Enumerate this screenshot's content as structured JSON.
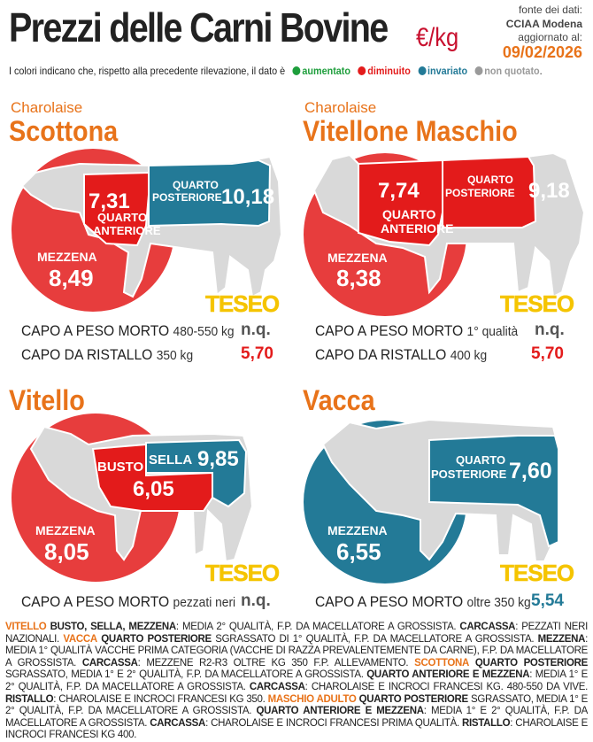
{
  "header": {
    "title": "Prezzi delle Carni Bovine",
    "unit": "€/kg",
    "source_label": "fonte dei dati:",
    "source": "CCIAA Modena",
    "updated_label": "aggiornato al:",
    "updated_date": "09/02/2026"
  },
  "legend": {
    "intro": "I colori indicano che, rispetto alla precedente rilevazione, il dato è",
    "items": [
      {
        "label": "aumentato",
        "color": "#1e9e3c"
      },
      {
        "label": "diminuito",
        "color": "#e31b1b"
      },
      {
        "label": "invariato",
        "color": "#237a97"
      },
      {
        "label": "non quotato",
        "color": "#9a9a9a"
      }
    ],
    "end": "."
  },
  "colors": {
    "increased": "#1e9e3c",
    "decreased": "#e31b1b",
    "unchanged": "#237a97",
    "not_quoted": "#9a9a9a",
    "accent": "#e8731a",
    "logo": "#f5c400"
  },
  "logo_text": "TESEO",
  "chart_data": [
    {
      "type": "table",
      "breed": "Charolaise",
      "category": "Scottona",
      "cuts": [
        {
          "name": "QUARTO ANTERIORE",
          "value": "7,31",
          "status": "decreased"
        },
        {
          "name": "QUARTO POSTERIORE",
          "value": "10,18",
          "status": "unchanged"
        },
        {
          "name": "MEZZENA",
          "value": "8,49",
          "status": "decreased"
        }
      ],
      "rows": [
        {
          "label": "CAPO A PESO MORTO",
          "qualifier": "480-550 kg",
          "value": "n.q.",
          "status": "not_quoted"
        },
        {
          "label": "CAPO DA RISTALLO",
          "qualifier": "350 kg",
          "value": "5,70",
          "status": "decreased"
        }
      ]
    },
    {
      "type": "table",
      "breed": "Charolaise",
      "category": "Vitellone Maschio",
      "cuts": [
        {
          "name": "QUARTO ANTERIORE",
          "value": "7,74",
          "status": "decreased"
        },
        {
          "name": "QUARTO POSTERIORE",
          "value": "9,18",
          "status": "decreased"
        },
        {
          "name": "MEZZENA",
          "value": "8,38",
          "status": "decreased"
        }
      ],
      "rows": [
        {
          "label": "CAPO A PESO MORTO",
          "qualifier": "1° qualità",
          "value": "n.q.",
          "status": "not_quoted"
        },
        {
          "label": "CAPO DA RISTALLO",
          "qualifier": "400 kg",
          "value": "5,70",
          "status": "decreased"
        }
      ]
    },
    {
      "type": "table",
      "breed": "",
      "category": "Vitello",
      "cuts": [
        {
          "name": "BUSTO",
          "value": "6,05",
          "status": "decreased"
        },
        {
          "name": "SELLA",
          "value": "9,85",
          "status": "unchanged"
        },
        {
          "name": "MEZZENA",
          "value": "8,05",
          "status": "decreased"
        }
      ],
      "rows": [
        {
          "label": "CAPO A PESO MORTO",
          "qualifier": "pezzati neri",
          "value": "n.q.",
          "status": "not_quoted"
        }
      ]
    },
    {
      "type": "table",
      "breed": "",
      "category": "Vacca",
      "cuts": [
        {
          "name": "QUARTO POSTERIORE",
          "value": "7,60",
          "status": "unchanged"
        },
        {
          "name": "MEZZENA",
          "value": "6,55",
          "status": "unchanged"
        }
      ],
      "rows": [
        {
          "label": "CAPO A PESO MORTO",
          "qualifier": "oltre 350 kg",
          "value": "5,54",
          "status": "unchanged"
        }
      ]
    }
  ],
  "footnote": {
    "vitello_title": "VITELLO",
    "vitello_cuts": "BUSTO, SELLA, MEZZENA",
    "vitello_text": ": MEDIA 2° QUALITÀ, F.P. DA MACELLATORE A GROSSISTA.",
    "vitello_carcassa": "CARCASSA",
    "vitello_carcassa_text": ": PEZZATI NERI NAZIONALI.",
    "vacca_title": "VACCA",
    "vacca_qp": "QUARTO POSTERIORE",
    "vacca_qp_text": "SGRASSATO DI 1° QUALITÀ, F.P. DA MACELLATORE A GROSSISTA.",
    "vacca_mezzena": "MEZZENA",
    "vacca_mezzena_text": ": MEDIA 1° QUALITÀ VACCHE PRIMA CATEGORIA (VACCHE DI RAZZA PREVALENTEMENTE DA CARNE), F.P. DA MACELLATORE A GROSSISTA.",
    "vacca_carcassa": "CARCASSA",
    "vacca_carcassa_text": ": MEZZENE R2-R3 OLTRE KG 350 F.P. ALLEVAMENTO.",
    "scottona_title": "SCOTTONA",
    "scottona_qp": "QUARTO POSTERIORE",
    "scottona_qp_text": "SGRASSATO, MEDIA 1° E 2° QUALITÀ, F.P. DA MACELLATORE A GROSSISTA.",
    "scottona_qa": "QUARTO ANTERIORE E MEZZENA",
    "scottona_qa_text": ": MEDIA 1° E 2° QUALITÀ, F.P. DA MACELLATORE A GROSSISTA.",
    "scottona_carcassa": "CARCASSA",
    "scottona_carcassa_text": ": CHAROLAISE E INCROCI FRANCESI KG. 480-550 DA VIVE.",
    "scottona_ristallo": "RISTALLO",
    "scottona_ristallo_text": ": CHAROLAISE E INCROCI FRANCESI KG 350.",
    "maschio_title": "MASCHIO ADULTO",
    "maschio_qp": "QUARTO POSTERIORE",
    "maschio_qp_text": "SGRASSATO, MEDIA 1° E 2° QUALITÀ, F.P. DA MACELLATORE A GROSSISTA.",
    "maschio_qa": "QUARTO ANTERIORE E MEZZENA",
    "maschio_qa_text": ": MEDIA 1° E 2° QUALITÀ, F.P. DA MACELLATORE A GROSSISTA.",
    "maschio_carcassa": "CARCASSA",
    "maschio_carcassa_text": ": CHAROLAISE E INCROCI FRANCESI PRIMA QUALITÀ.",
    "maschio_ristallo": "RISTALLO",
    "maschio_ristallo_text": ": CHAROLAISE E INCROCI FRANCESI KG 400."
  }
}
